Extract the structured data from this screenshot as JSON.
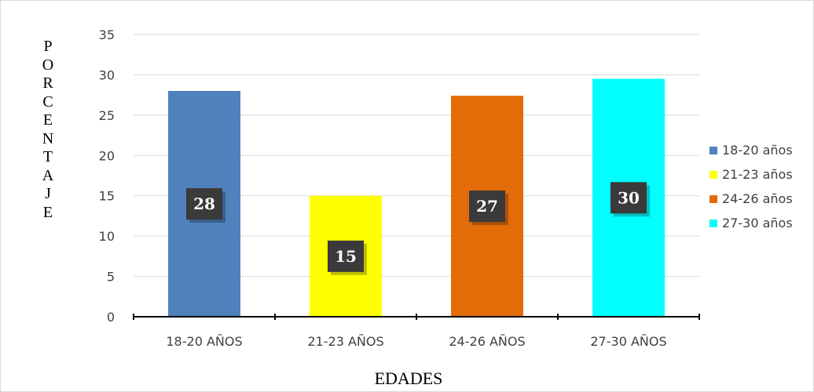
{
  "chart_data": {
    "type": "bar",
    "title": "",
    "xlabel": "EDADES",
    "ylabel": "PORCENTAJE",
    "ylim": [
      0,
      35
    ],
    "yticks": [
      0,
      5,
      10,
      15,
      20,
      25,
      30,
      35
    ],
    "grid": true,
    "legend_position": "right",
    "categories": [
      "18-20 AÑOS",
      "21-23 AÑOS",
      "24-26 AÑOS",
      "27-30 AÑOS"
    ],
    "values": [
      28,
      15,
      27.4,
      29.5
    ],
    "data_labels": [
      "28",
      "15",
      "27",
      "30"
    ],
    "colors": [
      "#4f81bd",
      "#ffff00",
      "#e36c09",
      "#00ffff"
    ],
    "legend": [
      "18-20 años",
      "21-23 años",
      "24-26 años",
      "27-30 años"
    ]
  }
}
